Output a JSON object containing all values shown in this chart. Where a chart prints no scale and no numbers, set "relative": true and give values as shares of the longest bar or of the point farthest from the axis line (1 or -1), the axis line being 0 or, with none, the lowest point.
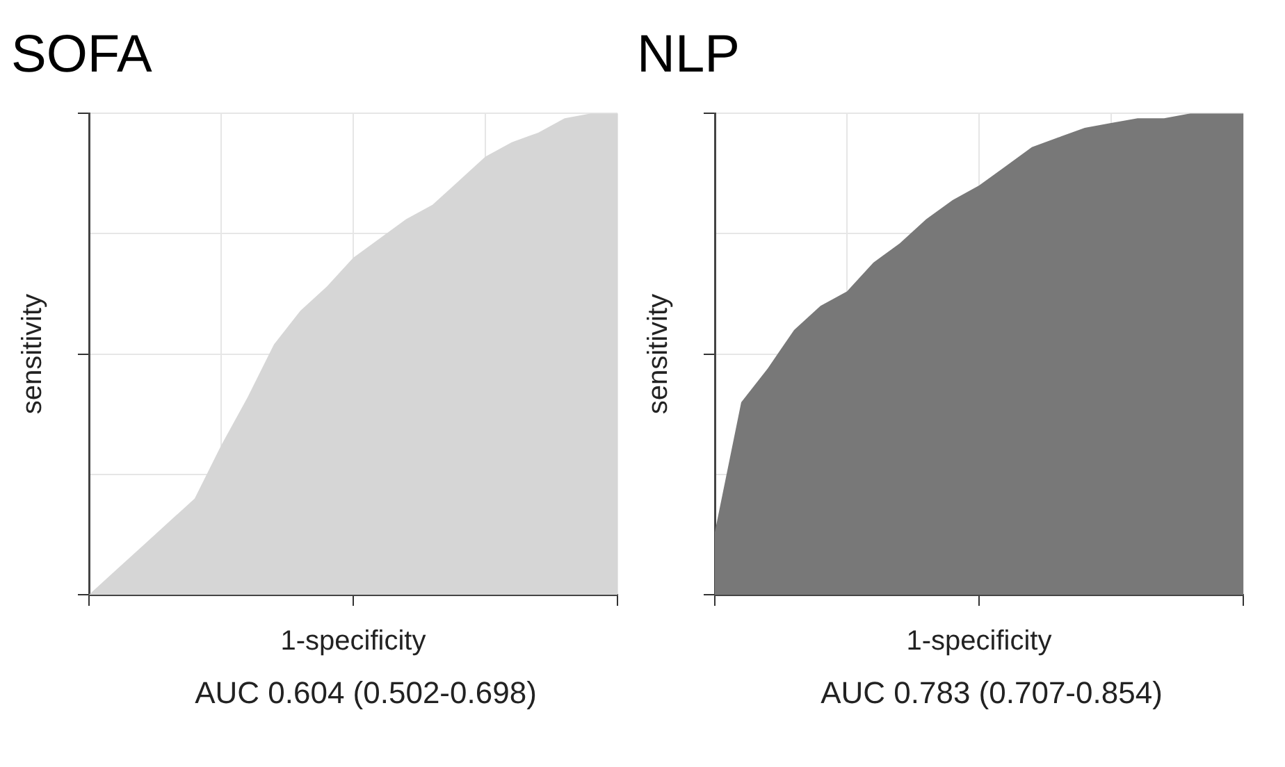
{
  "chart_data": [
    {
      "type": "area",
      "title": "SOFA",
      "xlabel": "1-specificity",
      "ylabel": "sensitivity",
      "annotations": [
        "AUC 0.604 (0.502-0.698)"
      ],
      "relative": true,
      "grid": true,
      "categories": [
        null,
        null,
        null,
        null,
        null,
        null,
        null,
        null,
        null,
        null,
        null,
        null,
        null,
        null,
        null,
        null,
        null,
        null,
        null,
        null,
        null
      ],
      "series": [
        {
          "color": "#d6d6d6",
          "values": [
            0,
            0.05,
            0.1,
            0.15,
            0.2,
            0.31,
            0.41,
            0.52,
            0.59,
            0.64,
            0.7,
            0.74,
            0.78,
            0.81,
            0.86,
            0.91,
            0.94,
            0.96,
            0.99,
            1,
            1
          ]
        }
      ]
    },
    {
      "type": "area",
      "title": "NLP",
      "xlabel": "1-specificity",
      "ylabel": "sensitivity",
      "annotations": [
        "AUC 0.783 (0.707-0.854)"
      ],
      "relative": true,
      "grid": true,
      "categories": [
        null,
        null,
        null,
        null,
        null,
        null,
        null,
        null,
        null,
        null,
        null,
        null,
        null,
        null,
        null,
        null,
        null,
        null,
        null,
        null,
        null
      ],
      "series": [
        {
          "color": "#787878",
          "values": [
            0.13,
            0.4,
            0.47,
            0.55,
            0.6,
            0.63,
            0.69,
            0.73,
            0.78,
            0.82,
            0.85,
            0.89,
            0.93,
            0.95,
            0.97,
            0.98,
            0.99,
            0.99,
            1,
            1,
            1
          ]
        }
      ]
    }
  ]
}
